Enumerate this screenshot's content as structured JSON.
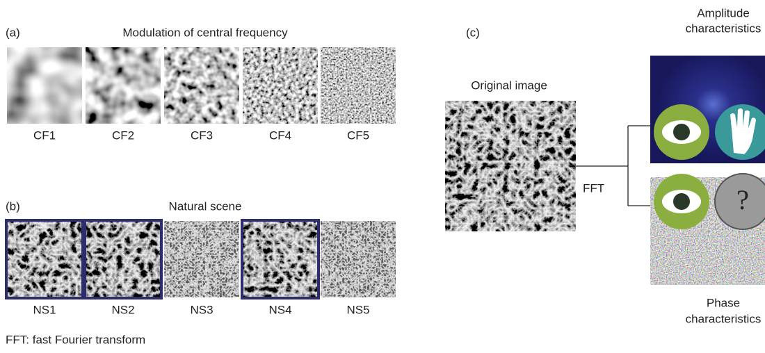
{
  "panel_a": {
    "label": "(a)",
    "title": "Modulation of central frequency",
    "images": [
      "CF1",
      "CF2",
      "CF3",
      "CF4",
      "CF5"
    ]
  },
  "panel_b": {
    "label": "(b)",
    "title": "Natural scene",
    "images": [
      "NS1",
      "NS2",
      "NS3",
      "NS4",
      "NS5"
    ],
    "highlighted": [
      true,
      true,
      false,
      true,
      false
    ]
  },
  "panel_c": {
    "label": "(c)",
    "original": "Original image",
    "transform": "FFT",
    "amplitude": [
      "Amplitude",
      "characteristics"
    ],
    "phase": [
      "Phase",
      "characteristics"
    ],
    "question_mark": "?"
  },
  "footnote": "FFT: fast Fourier transform"
}
